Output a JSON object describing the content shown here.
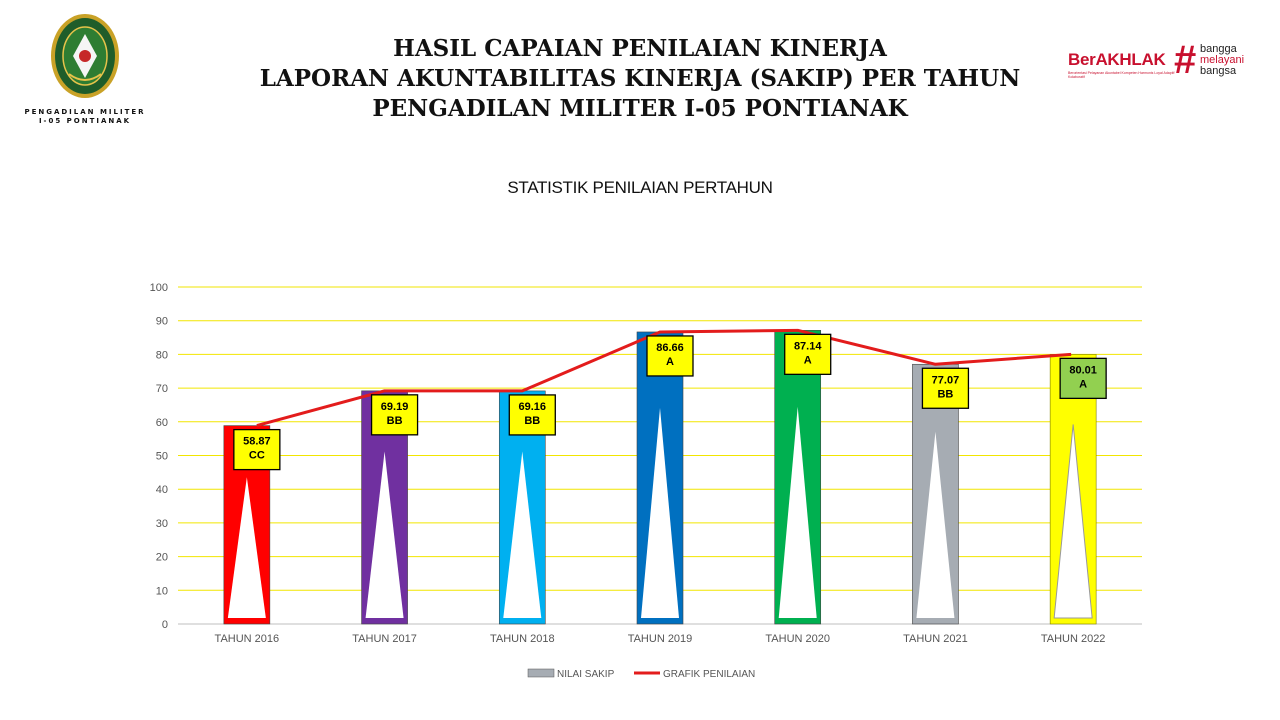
{
  "header": {
    "org_caption_line1": "PENGADILAN MILITER",
    "org_caption_line2": "I-05 PONTIANAK",
    "title_line1": "HASIL CAPAIAN PENILAIAN KINERJA",
    "title_line2": "LAPORAN AKUNTABILITAS KINERJA (SAKIP) PER TAHUN",
    "title_line3": "PENGADILAN MILITER I-05 PONTIANAK",
    "brand": {
      "name": "BerAKHLAK",
      "tagline": "Berorientasi Pelayanan Akuntabel Kompeten Harmonis Loyal Adaptif Kolaboratif",
      "words": [
        "bangga",
        "melayani",
        "bangsa"
      ],
      "color": "#c8102e"
    }
  },
  "chart_data": {
    "type": "bar",
    "title": "STATISTIK PENILAIAN PERTAHUN",
    "categories": [
      "TAHUN 2016",
      "TAHUN 2017",
      "TAHUN 2018",
      "TAHUN 2019",
      "TAHUN 2020",
      "TAHUN 2021",
      "TAHUN 2022"
    ],
    "series": [
      {
        "name": "NILAI SAKIP",
        "type": "bar",
        "values": [
          58.87,
          69.19,
          69.16,
          86.66,
          87.14,
          77.07,
          80.01
        ],
        "colors": [
          "#ff0000",
          "#7030a0",
          "#00b0f0",
          "#0070c0",
          "#00b050",
          "#a6acb3",
          "#ffff00"
        ],
        "legend_color": "#a6acb3"
      },
      {
        "name": "GRAFIK PENILAIAN",
        "type": "line",
        "values": [
          58.87,
          69.19,
          69.16,
          86.66,
          87.14,
          77.07,
          80.01
        ],
        "color": "#e31c1c"
      }
    ],
    "data_labels": [
      {
        "value": "58.87",
        "grade": "CC"
      },
      {
        "value": "69.19",
        "grade": "BB"
      },
      {
        "value": "69.16",
        "grade": "BB"
      },
      {
        "value": "86.66",
        "grade": "A"
      },
      {
        "value": "87.14",
        "grade": "A"
      },
      {
        "value": "77.07",
        "grade": "BB"
      },
      {
        "value": "80.01",
        "grade": "A"
      }
    ],
    "label_colors": [
      "#ffff00",
      "#ffff00",
      "#ffff00",
      "#ffff00",
      "#ffff00",
      "#ffff00",
      "#92d050"
    ],
    "ylim": [
      0,
      100
    ],
    "yticks": [
      0,
      10,
      20,
      30,
      40,
      50,
      60,
      70,
      80,
      90,
      100
    ],
    "grid": true,
    "grid_color": "#f2e600",
    "legend_position": "bottom"
  }
}
